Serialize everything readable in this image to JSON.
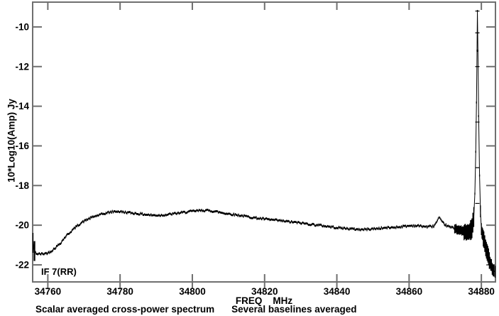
{
  "chart_data": {
    "type": "line",
    "title": "",
    "ylabel": "10*Log10(Amp) Jy",
    "xlabel_parts": [
      "FREQ",
      "MHz"
    ],
    "annotation": "IF 7(RR)",
    "captions": [
      "Scalar averaged cross-power spectrum",
      "Several baselines averaged"
    ],
    "xlim": [
      34755.8,
      34883.9
    ],
    "ylim": [
      -22.86,
      -8.75
    ],
    "x_ticks": [
      34760,
      34780,
      34800,
      34820,
      34840,
      34860,
      34880
    ],
    "y_ticks": [
      -10,
      -12,
      -14,
      -16,
      -18,
      -20,
      -22
    ],
    "grid": false,
    "legend": null,
    "colors": {
      "frame": "#6f6f6f",
      "data": "#000000",
      "text": "#000000",
      "background": "#ffffff"
    },
    "noise_db": 0.05,
    "noise_quiet_range": [
      34877.8,
      34880.1
    ],
    "series": [
      {
        "name": "scalar averaged cross-power spectrum",
        "anchors": [
          [
            34755.9,
            -20.9
          ],
          [
            34756.2,
            -21.3
          ],
          [
            34757.0,
            -21.45
          ],
          [
            34758.5,
            -21.45
          ],
          [
            34760.0,
            -21.4
          ],
          [
            34761.0,
            -21.3
          ],
          [
            34762.0,
            -21.15
          ],
          [
            34763.5,
            -20.9
          ],
          [
            34765.0,
            -20.55
          ],
          [
            34766.5,
            -20.3
          ],
          [
            34768.0,
            -20.05
          ],
          [
            34769.5,
            -19.85
          ],
          [
            34771.0,
            -19.7
          ],
          [
            34773.0,
            -19.55
          ],
          [
            34775.0,
            -19.45
          ],
          [
            34777.0,
            -19.35
          ],
          [
            34779.0,
            -19.3
          ],
          [
            34781.0,
            -19.34
          ],
          [
            34783.0,
            -19.38
          ],
          [
            34785.0,
            -19.42
          ],
          [
            34787.0,
            -19.46
          ],
          [
            34789.0,
            -19.5
          ],
          [
            34791.0,
            -19.5
          ],
          [
            34793.0,
            -19.47
          ],
          [
            34795.0,
            -19.42
          ],
          [
            34797.0,
            -19.37
          ],
          [
            34799.0,
            -19.32
          ],
          [
            34801.0,
            -19.28
          ],
          [
            34803.0,
            -19.25
          ],
          [
            34805.0,
            -19.27
          ],
          [
            34807.0,
            -19.33
          ],
          [
            34809.0,
            -19.4
          ],
          [
            34811.0,
            -19.45
          ],
          [
            34813.0,
            -19.5
          ],
          [
            34815.0,
            -19.56
          ],
          [
            34817.0,
            -19.62
          ],
          [
            34819.0,
            -19.67
          ],
          [
            34821.0,
            -19.71
          ],
          [
            34823.0,
            -19.75
          ],
          [
            34825.0,
            -19.79
          ],
          [
            34827.0,
            -19.83
          ],
          [
            34829.0,
            -19.87
          ],
          [
            34831.0,
            -19.91
          ],
          [
            34833.0,
            -19.96
          ],
          [
            34835.0,
            -20.0
          ],
          [
            34837.0,
            -20.05
          ],
          [
            34839.0,
            -20.1
          ],
          [
            34841.0,
            -20.14
          ],
          [
            34843.0,
            -20.17
          ],
          [
            34845.0,
            -20.2
          ],
          [
            34847.0,
            -20.22
          ],
          [
            34849.0,
            -20.2
          ],
          [
            34851.0,
            -20.17
          ],
          [
            34853.0,
            -20.14
          ],
          [
            34855.0,
            -20.12
          ],
          [
            34857.0,
            -20.09
          ],
          [
            34859.0,
            -20.05
          ],
          [
            34861.0,
            -20.02
          ],
          [
            34863.0,
            -20.04
          ],
          [
            34865.0,
            -20.08
          ],
          [
            34866.8,
            -20.05
          ],
          [
            34867.6,
            -19.85
          ],
          [
            34868.3,
            -19.62
          ],
          [
            34869.0,
            -19.82
          ],
          [
            34870.0,
            -19.98
          ],
          [
            34871.0,
            -20.08
          ],
          [
            34872.0,
            -20.12
          ],
          [
            34873.0,
            -20.18
          ],
          [
            34874.0,
            -20.25
          ],
          [
            34875.0,
            -20.32
          ],
          [
            34876.0,
            -20.38
          ],
          [
            34876.8,
            -20.32
          ],
          [
            34877.4,
            -20.15
          ],
          [
            34877.9,
            -19.6
          ],
          [
            34878.2,
            -18.4
          ],
          [
            34878.45,
            -16.3
          ],
          [
            34878.65,
            -13.8
          ],
          [
            34878.8,
            -11.2
          ],
          [
            34878.9,
            -9.2
          ],
          [
            34879.05,
            -11.2
          ],
          [
            34879.25,
            -14.5
          ],
          [
            34879.5,
            -17.5
          ],
          [
            34879.75,
            -19.3
          ],
          [
            34880.0,
            -20.2
          ],
          [
            34880.35,
            -20.5
          ],
          [
            34880.7,
            -20.75
          ],
          [
            34881.2,
            -21.15
          ],
          [
            34881.8,
            -21.5
          ],
          [
            34882.4,
            -21.85
          ],
          [
            34883.0,
            -22.15
          ],
          [
            34883.5,
            -22.3
          ],
          [
            34883.8,
            -22.35
          ]
        ]
      }
    ],
    "error_bands": [
      [
        34755.8,
        34756.5,
        0.5
      ],
      [
        34872.5,
        34875.0,
        0.22
      ],
      [
        34875.0,
        34876.8,
        0.38
      ],
      [
        34876.8,
        34878.1,
        0.5
      ],
      [
        34879.6,
        34880.4,
        0.3
      ],
      [
        34880.4,
        34882.3,
        0.42
      ],
      [
        34882.3,
        34883.9,
        0.3
      ]
    ],
    "spike": {
      "freq": 34878.9,
      "peak_db": -9.2,
      "marker_values": [
        -9.2,
        -10.3,
        -12.0,
        -14.8,
        -17.1,
        -18.9
      ]
    }
  }
}
